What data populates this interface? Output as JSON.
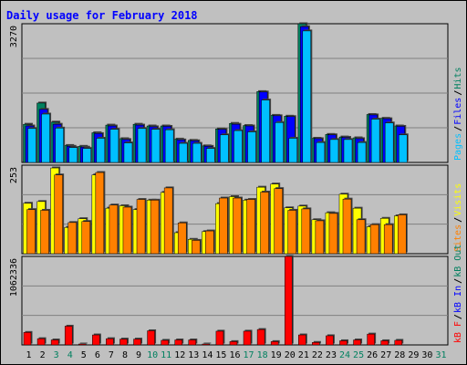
{
  "title": "Daily usage for February 2018",
  "colors": {
    "background": "#c0c0c0",
    "plot_bg": "#c0c0c0",
    "grid": "#808080",
    "hits": "#00805f",
    "files": "#0000ff",
    "pages": "#00c0ff",
    "visits": "#ffff00",
    "sites": "#ff8000",
    "kbytes": "#ff0000",
    "title": "#0000ff",
    "weekend_label": "#00805f"
  },
  "chart_data": [
    {
      "type": "bar",
      "panel": "hits-files-pages",
      "y_max_label": "3270",
      "ylim": [
        0,
        3270
      ],
      "legend": [
        {
          "name": "Pages",
          "color": "#00c0ff"
        },
        {
          "name": "/",
          "color": "#000000"
        },
        {
          "name": "Files",
          "color": "#0000ff"
        },
        {
          "name": "/",
          "color": "#000000"
        },
        {
          "name": "Hits",
          "color": "#00805f"
        }
      ],
      "series": [
        {
          "name": "Hits",
          "values": [
            900,
            1400,
            950,
            400,
            380,
            700,
            880,
            560,
            900,
            860,
            860,
            550,
            520,
            390,
            790,
            920,
            870,
            1670,
            1110,
            1090,
            3270,
            570,
            660,
            600,
            580,
            1130,
            1040,
            860,
            0,
            0,
            0
          ]
        },
        {
          "name": "Files",
          "values": [
            860,
            1250,
            900,
            380,
            360,
            680,
            860,
            540,
            880,
            840,
            850,
            530,
            510,
            380,
            780,
            900,
            860,
            1660,
            1100,
            1080,
            3200,
            560,
            650,
            590,
            560,
            1120,
            1030,
            850,
            0,
            0,
            0
          ]
        },
        {
          "name": "Pages",
          "values": [
            800,
            1140,
            810,
            350,
            330,
            570,
            780,
            460,
            800,
            780,
            770,
            450,
            450,
            330,
            650,
            750,
            720,
            1470,
            940,
            570,
            3100,
            470,
            540,
            540,
            470,
            1020,
            930,
            650,
            0,
            0,
            0
          ]
        }
      ]
    },
    {
      "type": "bar",
      "panel": "visits-sites",
      "y_max_label": "253",
      "ylim": [
        0,
        253
      ],
      "legend": [
        {
          "name": "Sites",
          "color": "#ff8000"
        },
        {
          "name": "/",
          "color": "#000000"
        },
        {
          "name": "Visits",
          "color": "#ffff00"
        }
      ],
      "series": [
        {
          "name": "Visits",
          "values": [
            144,
            149,
            245,
            75,
            100,
            225,
            130,
            137,
            126,
            153,
            175,
            60,
            41,
            63,
            143,
            163,
            153,
            190,
            199,
            131,
            136,
            97,
            117,
            170,
            130,
            77,
            101,
            108,
            0,
            0,
            0
          ]
        },
        {
          "name": "Sites",
          "values": [
            126,
            124,
            225,
            89,
            92,
            232,
            139,
            133,
            155,
            153,
            188,
            88,
            38,
            65,
            159,
            159,
            155,
            176,
            186,
            124,
            128,
            94,
            115,
            156,
            97,
            83,
            83,
            111,
            0,
            0,
            0
          ]
        }
      ]
    },
    {
      "type": "bar",
      "panel": "kbytes",
      "y_max_label": "1062336",
      "ylim": [
        0,
        1062336
      ],
      "legend": [
        {
          "name": "kB F",
          "color": "#ff0000"
        },
        {
          "name": "/",
          "color": "#000000"
        },
        {
          "name": "kB In",
          "color": "#0000ff"
        },
        {
          "name": "/",
          "color": "#000000"
        },
        {
          "name": "kB Out",
          "color": "#00805f"
        }
      ],
      "series": [
        {
          "name": "kB F",
          "values": [
            150000,
            75000,
            60000,
            225000,
            10000,
            120000,
            75000,
            70000,
            70000,
            170000,
            55000,
            60000,
            60000,
            10000,
            165000,
            40000,
            165000,
            185000,
            40000,
            1062336,
            120000,
            30000,
            110000,
            50000,
            60000,
            130000,
            50000,
            55000,
            0,
            0,
            0
          ]
        }
      ]
    }
  ],
  "x_axis": {
    "labels": [
      "1",
      "2",
      "3",
      "4",
      "5",
      "6",
      "7",
      "8",
      "9",
      "10",
      "11",
      "12",
      "13",
      "14",
      "15",
      "16",
      "17",
      "18",
      "19",
      "20",
      "21",
      "22",
      "23",
      "24",
      "25",
      "26",
      "27",
      "28",
      "29",
      "30",
      "31"
    ],
    "weekend_days": [
      3,
      4,
      10,
      11,
      17,
      18,
      24,
      25,
      31
    ]
  }
}
